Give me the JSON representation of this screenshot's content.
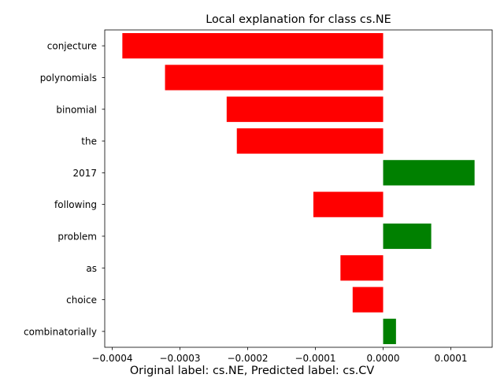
{
  "chart_data": {
    "type": "bar",
    "orientation": "horizontal",
    "title": "Local explanation for class cs.NE",
    "caption": "Original label: cs.NE, Predicted label: cs.CV",
    "categories": [
      "conjecture",
      "polynomials",
      "binomial",
      "the",
      "2017",
      "following",
      "problem",
      "as",
      "choice",
      "combinatorially"
    ],
    "values": [
      -0.000385,
      -0.000322,
      -0.000231,
      -0.000216,
      0.000135,
      -0.000103,
      7.1e-05,
      -6.3e-05,
      -4.5e-05,
      1.9e-05
    ],
    "x_ticks": [
      -0.0004,
      -0.0003,
      -0.0002,
      -0.0001,
      0.0,
      0.0001
    ],
    "x_tick_labels": [
      "−0.0004",
      "−0.0003",
      "−0.0002",
      "−0.0001",
      "0.0000",
      "0.0001"
    ],
    "xlim": [
      -0.000411,
      0.000161
    ],
    "xlabel": "",
    "ylabel": "",
    "grid": false,
    "colors": {
      "positive": "#008000",
      "negative": "#ff0000"
    }
  }
}
